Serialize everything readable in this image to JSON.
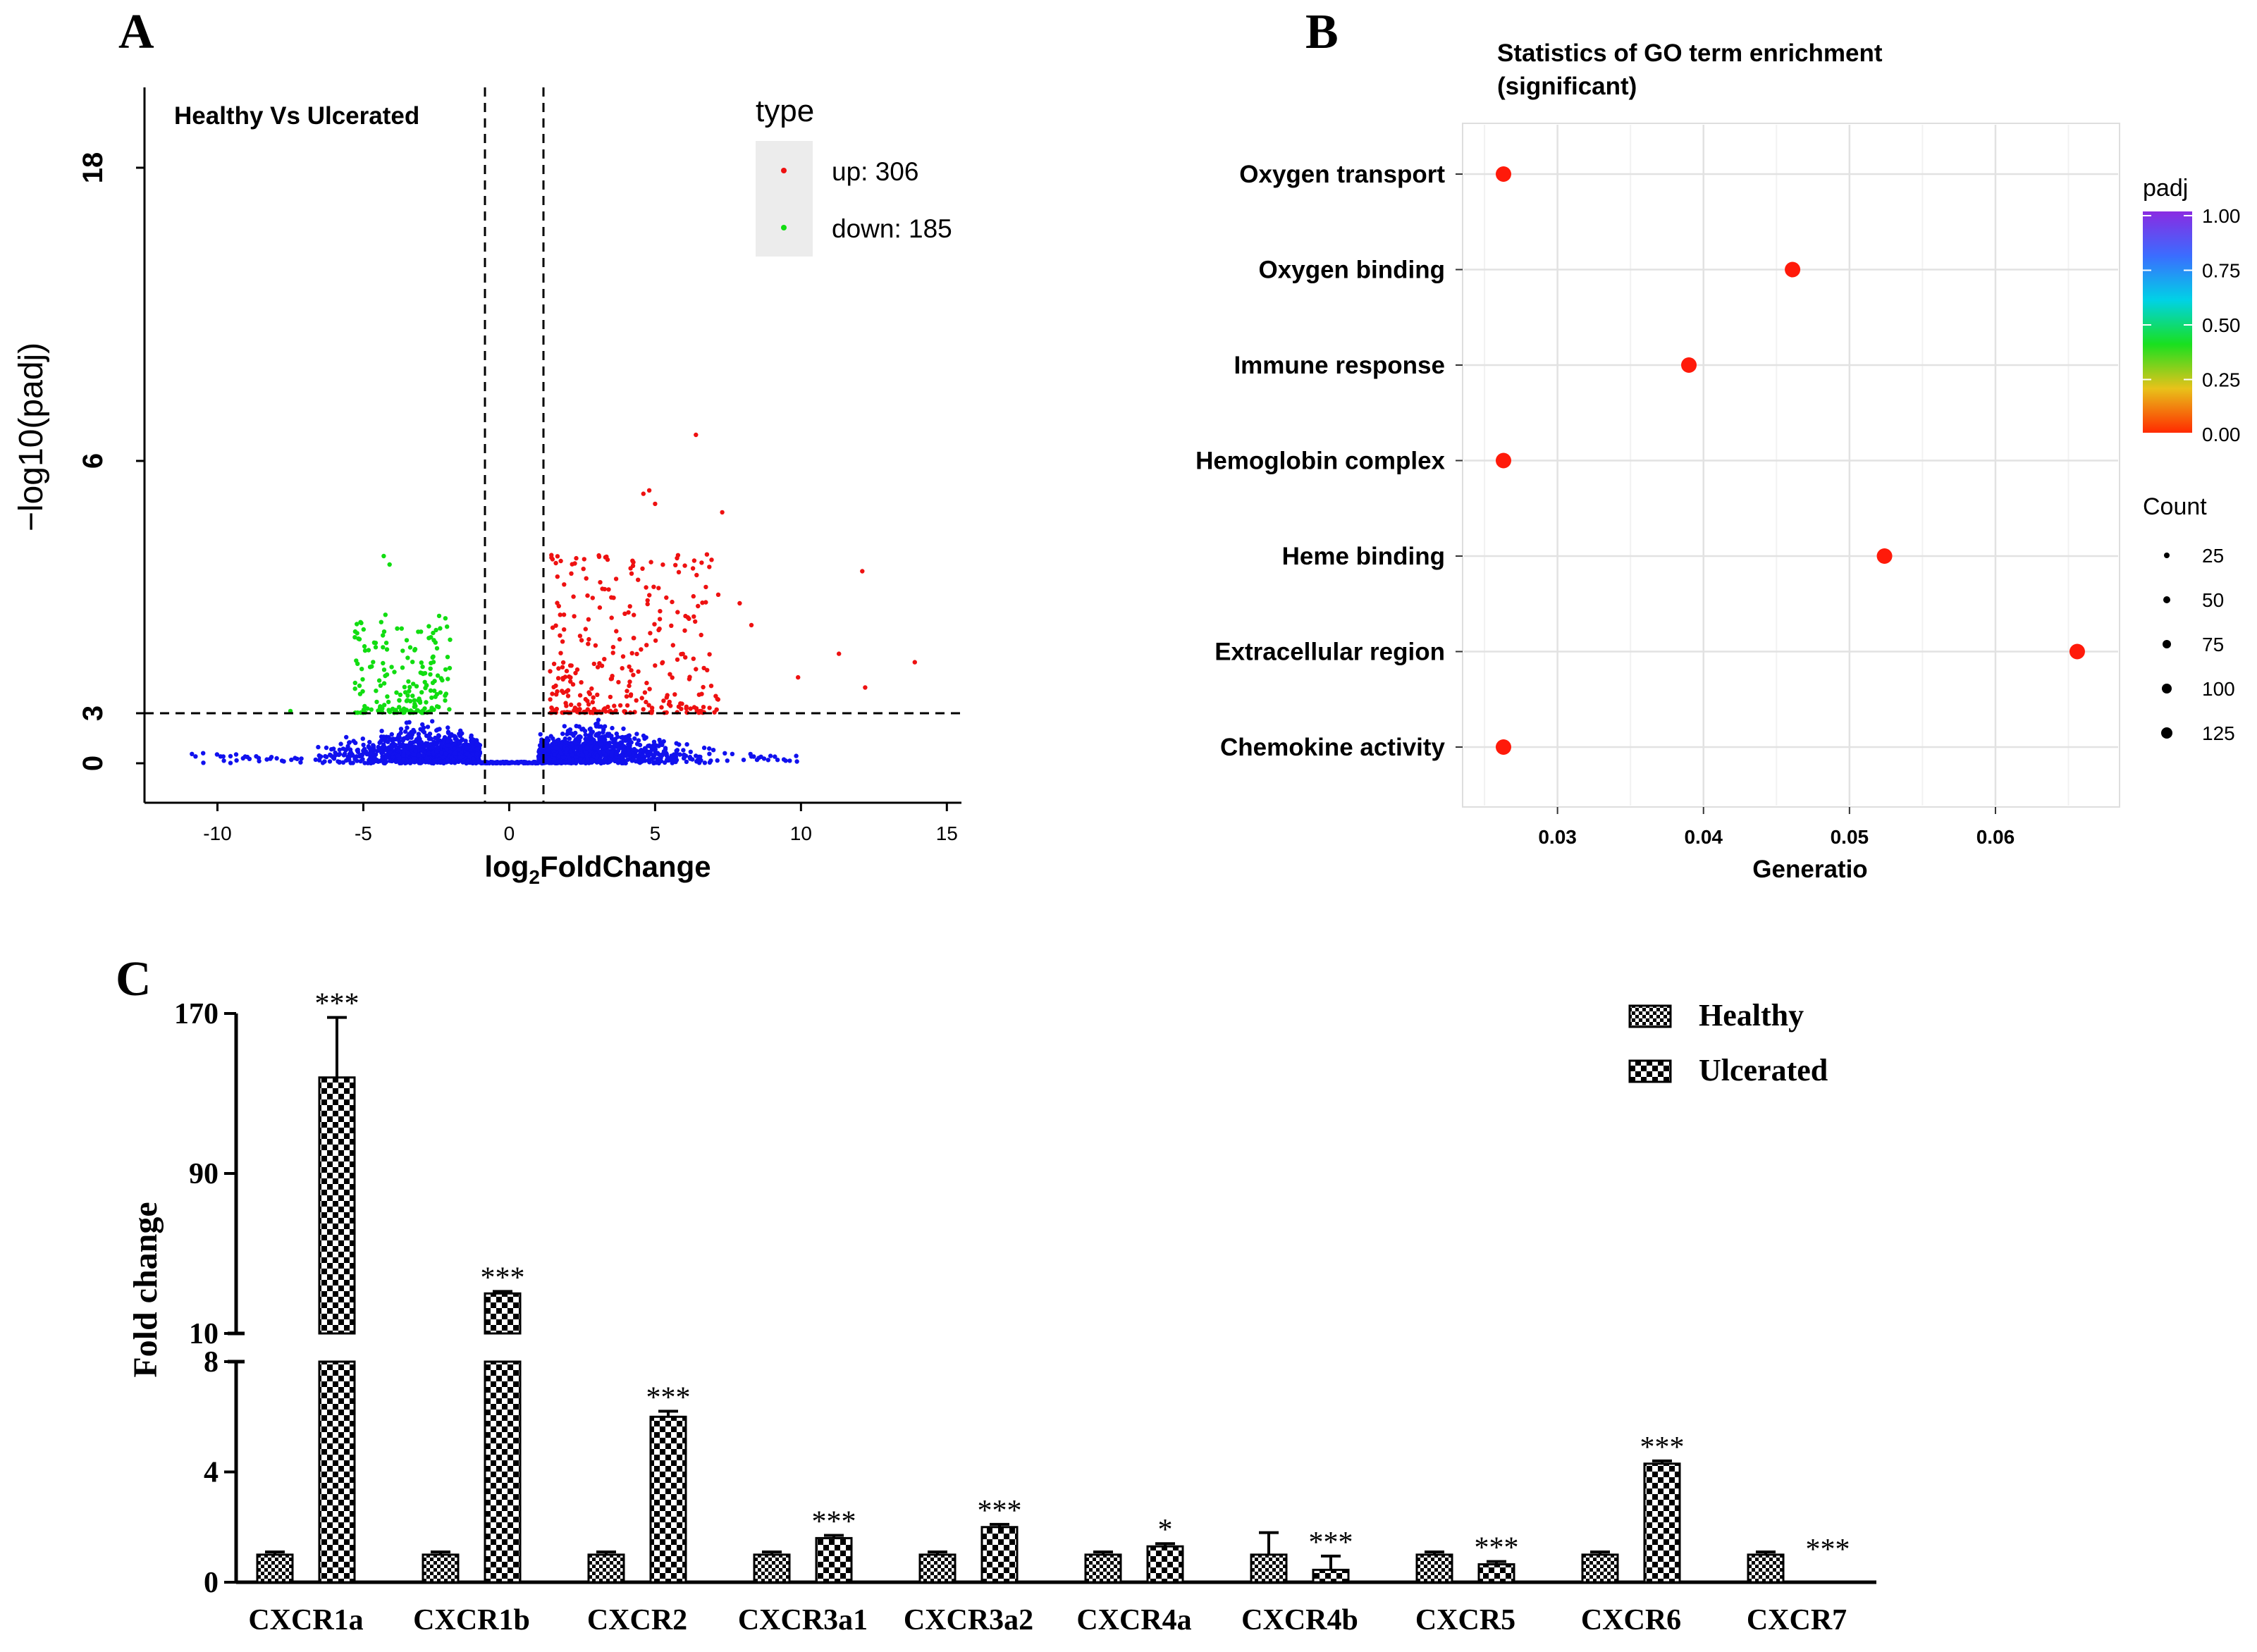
{
  "panels": {
    "a": "A",
    "b": "B",
    "c": "C"
  },
  "chart_data": [
    {
      "type": "scatter",
      "panel": "A",
      "annotation": "Healthy Vs Ulcerated",
      "xlabel_main": "log",
      "xlabel_sub": "2",
      "xlabel_rest": "FoldChange",
      "ylabel": "−log10(padj)",
      "xticks": [
        -10,
        -5,
        0,
        5,
        10,
        15
      ],
      "yticks": [
        "0",
        "3",
        "6",
        "18"
      ],
      "xlim": [
        -12.5,
        15.5
      ],
      "threshold_lines": {
        "x": [
          -1,
          1
        ],
        "y": 3
      },
      "legend": {
        "title": "type",
        "entries": [
          "up: 306",
          "down: 185"
        ]
      },
      "series": [
        {
          "name": "up",
          "color": "#ee1111",
          "count": 306
        },
        {
          "name": "down",
          "color": "#11dd11",
          "count": 185
        },
        {
          "name": "not significant",
          "color": "#1111ee"
        }
      ]
    },
    {
      "type": "scatter",
      "panel": "B",
      "title_line1": "Statistics of GO term enrichment",
      "title_line2": "(significant)",
      "xlabel": "Generatio",
      "xlim": [
        0.0235,
        0.0685
      ],
      "xticks": [
        "0.03",
        "0.04",
        "0.05",
        "0.06"
      ],
      "categories": [
        "Oxygen transport",
        "Oxygen binding",
        "Immune response",
        "Hemoglobin complex",
        "Heme binding",
        "Extracellular region",
        "Chemokine activity"
      ],
      "x": [
        0.0263,
        0.0461,
        0.039,
        0.0263,
        0.0524,
        0.0656,
        0.0263
      ],
      "padj": [
        0.0,
        0.0,
        0.0,
        0.0,
        0.0,
        0.0,
        0.0
      ],
      "color_legend": {
        "title": "padj",
        "ticks": [
          "1.00",
          "0.75",
          "0.50",
          "0.25",
          "0.00"
        ]
      },
      "size_legend": {
        "title": "Count",
        "values": [
          "25",
          "50",
          "75",
          "100",
          "125"
        ]
      }
    },
    {
      "type": "bar",
      "panel": "C",
      "ylabel": "Fold change",
      "axis_break": {
        "lower": [
          0,
          8
        ],
        "upper": [
          10,
          170
        ]
      },
      "yticks_lower": [
        "0",
        "4",
        "8"
      ],
      "yticks_upper": [
        "10",
        "90",
        "170"
      ],
      "categories": [
        "CXCR1a",
        "CXCR1b",
        "CXCR2",
        "CXCR3a1",
        "CXCR3a2",
        "CXCR4a",
        "CXCR4b",
        "CXCR5",
        "CXCR6",
        "CXCR7"
      ],
      "legend": [
        "Healthy",
        "Ulcerated"
      ],
      "series": [
        {
          "name": "Healthy",
          "values": [
            1.0,
            1.0,
            1.0,
            1.0,
            1.0,
            1.0,
            1.0,
            1.0,
            1.0,
            1.0
          ],
          "error": [
            0.1,
            0.1,
            0.1,
            0.1,
            0.1,
            0.1,
            0.8,
            0.1,
            0.1,
            0.1
          ]
        },
        {
          "name": "Ulcerated",
          "values": [
            138,
            30,
            6.0,
            1.6,
            2.0,
            1.3,
            0.45,
            0.65,
            4.3,
            0.05
          ],
          "error": [
            30,
            1,
            0.2,
            0.1,
            0.1,
            0.1,
            0.5,
            0.1,
            0.1,
            0.0
          ]
        }
      ],
      "significance": [
        "***",
        "***",
        "***",
        "***",
        "***",
        "*",
        "***",
        "***",
        "***",
        "***"
      ]
    }
  ]
}
